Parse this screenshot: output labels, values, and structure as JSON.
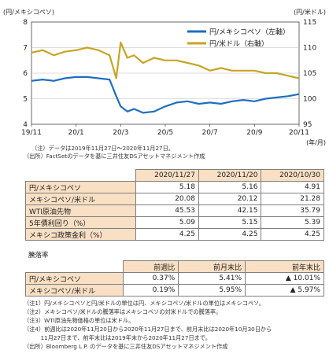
{
  "chart_data": {
    "type": "line",
    "left_axis_title": "(円/メキシコペソ)",
    "right_axis_title": "(円/米ドル)",
    "x_unit": "(年/月)",
    "x_ticks": [
      "19/11",
      "20/1",
      "20/3",
      "20/5",
      "20/7",
      "20/9",
      "20/11"
    ],
    "y_left": {
      "min": 4,
      "max": 8,
      "ticks": [
        "4",
        "5",
        "6",
        "7",
        "8"
      ]
    },
    "y_right": {
      "min": 95,
      "max": 115,
      "ticks": [
        "95",
        "100",
        "105",
        "110",
        "115"
      ]
    },
    "series": [
      {
        "name": "円/メキシコペソ（左軸）",
        "axis": "left",
        "color": "#1f6fc0",
        "x": [
          0,
          0.5,
          1,
          1.5,
          2,
          2.5,
          3,
          3.5,
          3.8,
          4,
          4.3,
          4.6,
          5,
          5.5,
          6,
          6.5,
          7,
          7.5,
          8,
          8.5,
          9,
          9.5,
          10,
          10.5,
          11,
          11.5,
          12
        ],
        "values": [
          5.7,
          5.75,
          5.7,
          5.8,
          5.85,
          5.85,
          5.8,
          5.75,
          5.1,
          4.7,
          4.5,
          4.6,
          4.45,
          4.5,
          4.7,
          4.85,
          4.9,
          4.8,
          4.85,
          4.8,
          4.9,
          4.95,
          4.9,
          5.0,
          5.05,
          5.1,
          5.18
        ]
      },
      {
        "name": "円/米ドル（右軸）",
        "axis": "right",
        "color": "#c8a424",
        "x": [
          0,
          0.5,
          1,
          1.5,
          2,
          2.5,
          3,
          3.5,
          3.8,
          4,
          4.3,
          4.6,
          5,
          5.5,
          6,
          6.5,
          7,
          7.5,
          8,
          8.5,
          9,
          9.5,
          10,
          10.5,
          11,
          11.5,
          12
        ],
        "values": [
          109,
          109.5,
          108.5,
          109.2,
          109.5,
          110,
          109.5,
          108.5,
          104,
          111,
          108,
          108.5,
          107,
          108,
          107.5,
          107.5,
          107,
          106.5,
          105.5,
          106,
          105.5,
          105.5,
          105.5,
          105,
          105,
          104.5,
          104
        ]
      }
    ]
  },
  "chart_notes": [
    "（注）データは2019年11月27日～2020年11月27日。",
    "（出所）FactSetのデータを基に三井住友DSアセットマネジメント作成"
  ],
  "table1": {
    "headers": [
      "2020/11/27",
      "2020/11/20",
      "2020/10/30"
    ],
    "rows": [
      {
        "label": "円/メキシコペソ",
        "values": [
          "5.18",
          "5.16",
          "4.91"
        ]
      },
      {
        "label": "メキシコペソ/米ドル",
        "values": [
          "20.08",
          "20.12",
          "21.28"
        ]
      },
      {
        "label": "WTI原油先物",
        "values": [
          "45.53",
          "42.15",
          "35.79"
        ]
      },
      {
        "label": "5年債利回り（%）",
        "values": [
          "5.09",
          "5.15",
          "5.39"
        ]
      },
      {
        "label": "メキシコ政策金利（%）",
        "values": [
          "4.25",
          "4.25",
          "4.25"
        ]
      }
    ]
  },
  "table2": {
    "title": "騰落率",
    "headers": [
      "前週比",
      "前月末比",
      "前年末比"
    ],
    "rows": [
      {
        "label": "円/メキシコペソ",
        "values": [
          "0.37%",
          "5.41%",
          "▲ 10.01%"
        ]
      },
      {
        "label": "メキシコペソ/米ドル",
        "values": [
          "0.19%",
          "5.95%",
          "▲ 5.97%"
        ]
      }
    ]
  },
  "footnotes": [
    "（注1）円/メキシコペソと円/米ドルの単位は円、メキシコペソ/米ドルの単位はメキシコペソ。",
    "（注2）メキシコペソ/米ドルの騰落率はメキシコペソの対米ドルでの騰落率。",
    "（注3）WTI原油先物価格の単位は米ドル。",
    "（注4）前週比は2020年11月20日から2020年11月27日まで、前月末比は2020年10月30日から",
    "　　　11月27日まで、前年末比は2019年末から2020年11月27日まで。",
    "（出所）Bloomberg L.P. のデータを基に三井住友DSアセットマネジメント作成"
  ]
}
